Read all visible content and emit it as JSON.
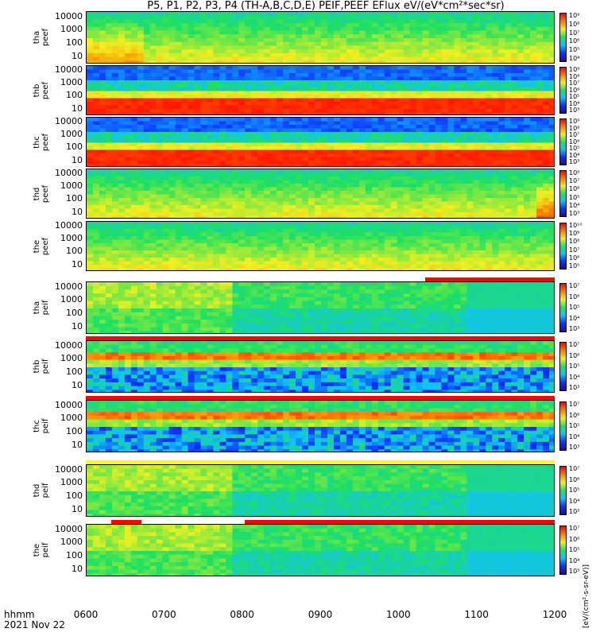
{
  "title": "P5, P1, P2, P3, P4 (TH-A,B,C,D,E) PEIF,PEEF EFlux eV/(eV*cm²*sec*sr)",
  "x_axis": {
    "corner_label_1": "hhmm",
    "corner_label_2": "2021 Nov 22",
    "ticks": [
      "0600",
      "0700",
      "0800",
      "0900",
      "1000",
      "1100",
      "1200"
    ]
  },
  "y_ticks": [
    "10000",
    "1000",
    "100",
    "10"
  ],
  "colorbar_label": "[eV/(cm²-s-sr-eV)]",
  "colors": {
    "colormap": [
      "#2a0a8a",
      "#1030ff",
      "#10c0ff",
      "#20e060",
      "#f0f020",
      "#ff8000",
      "#ff0000"
    ]
  },
  "chart_data": {
    "type": "heatmap",
    "x_range": [
      "0600",
      "1200"
    ],
    "y_scale": "log",
    "y_range_eV": [
      7,
      30000
    ],
    "panels": [
      {
        "probe": "tha",
        "product": "peef",
        "ylabel_1": "tha",
        "ylabel_2": "peef",
        "cbar_ticks": [
          "10⁹",
          "10⁸",
          "10⁷",
          "10⁶",
          "10⁵",
          "10⁴"
        ]
      },
      {
        "probe": "thb",
        "product": "peef",
        "ylabel_1": "thb",
        "ylabel_2": "peef",
        "cbar_ticks": [
          "10⁹",
          "10⁸",
          "10⁷",
          "10⁶",
          "10⁵",
          "10⁴",
          "10³"
        ]
      },
      {
        "probe": "thc",
        "product": "peef",
        "ylabel_1": "thc",
        "ylabel_2": "peef",
        "cbar_ticks": [
          "10⁹",
          "10⁸",
          "10⁷",
          "10⁶",
          "10⁵",
          "10⁴",
          "10³"
        ]
      },
      {
        "probe": "thd",
        "product": "peef",
        "ylabel_1": "thd",
        "ylabel_2": "peef",
        "cbar_ticks": [
          "10⁸",
          "10⁷",
          "10⁶",
          "10⁵",
          "10⁴",
          "10³"
        ]
      },
      {
        "probe": "the",
        "product": "peef",
        "ylabel_1": "the",
        "ylabel_2": "peef",
        "cbar_ticks": [
          "10¹⁰",
          "10⁹",
          "10⁸",
          "10⁷",
          "10⁶",
          "10⁵"
        ]
      },
      {
        "probe": "tha",
        "product": "peif",
        "ylabel_1": "tha",
        "ylabel_2": "peif",
        "cbar_ticks": [
          "10⁷",
          "10⁶",
          "10⁵",
          "10⁴",
          "10³"
        ]
      },
      {
        "probe": "thb",
        "product": "peif",
        "ylabel_1": "thb",
        "ylabel_2": "peif",
        "cbar_ticks": [
          "10⁷",
          "10⁶",
          "10⁵",
          "10⁴",
          "10³"
        ]
      },
      {
        "probe": "thc",
        "product": "peif",
        "ylabel_1": "thc",
        "ylabel_2": "peif",
        "cbar_ticks": [
          "10⁷",
          "10⁶",
          "10⁵",
          "10⁴",
          "10³"
        ]
      },
      {
        "probe": "thd",
        "product": "peif",
        "ylabel_1": "thd",
        "ylabel_2": "peif",
        "cbar_ticks": [
          "10⁷",
          "10⁶",
          "10⁵",
          "10⁴",
          "10³"
        ]
      },
      {
        "probe": "the",
        "product": "peif",
        "ylabel_1": "the",
        "ylabel_2": "peif",
        "cbar_ticks": [
          "10⁷",
          "10⁶",
          "10⁵",
          "10⁴",
          "10³"
        ]
      }
    ]
  }
}
